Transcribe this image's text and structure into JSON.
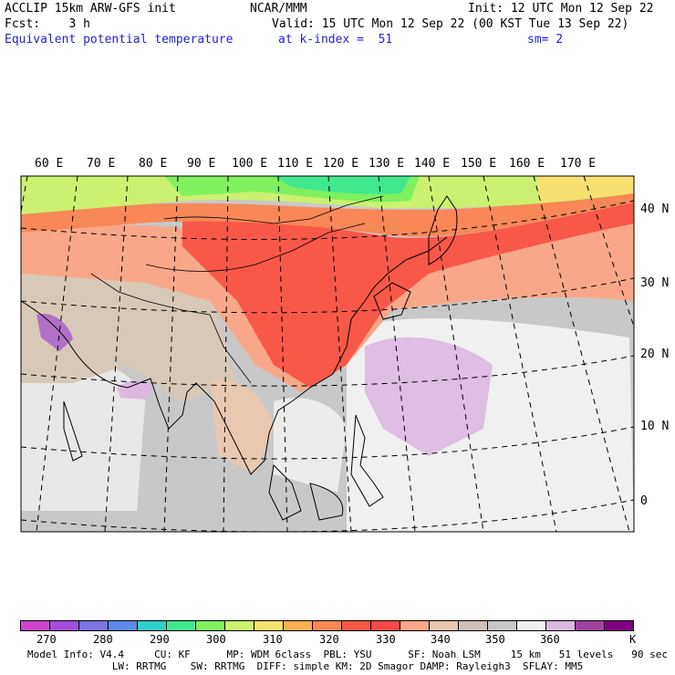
{
  "header": {
    "left1": "ACCLIP 15km ARW-GFS init",
    "left2": "Fcst:    3 h",
    "variable": "Equivalent potential temperature",
    "center": "NCAR/MMM",
    "init": "Init: 12 UTC Mon 12 Sep 22",
    "valid": "Valid: 15 UTC Mon 12 Sep 22 (00 KST Tue 13 Sep 22)",
    "level": "at k-index =  51",
    "smooth": "sm= 2"
  },
  "lon_labels": [
    "60 E",
    "70 E",
    "80 E",
    "90 E",
    "100 E",
    "110 E",
    "120 E",
    "130 E",
    "140 E",
    "150 E",
    "160 E",
    "170 E"
  ],
  "lat_labels": [
    "40 N",
    "30 N",
    "20 N",
    "10 N",
    "0"
  ],
  "colorbar": {
    "colors": [
      "#cc44cc",
      "#a050d8",
      "#7c74e0",
      "#5c8ce8",
      "#30d0c8",
      "#40e890",
      "#80f060",
      "#ccf070",
      "#f8e070",
      "#f8b050",
      "#f88858",
      "#f85848",
      "#f84848",
      "#f8a888",
      "#e8c8b0",
      "#d0c0b8",
      "#c8c8c8",
      "#f0f0f0",
      "#dcb8e0",
      "#a040a0",
      "#800080"
    ],
    "labels": [
      "270",
      "280",
      "290",
      "300",
      "310",
      "320",
      "330",
      "340",
      "350",
      "360",
      "K"
    ]
  },
  "footer": {
    "line1": "Model Info: V4.4     CU: KF      MP: WDM 6class  PBL: YSU      SF: Noah LSM     15 km   51 levels   90 sec",
    "line2": "              LW: RRTMG    SW: RRTMG  DIFF: simple KM: 2D Smagor DAMP: Rayleigh3  SFLAY: MM5"
  }
}
